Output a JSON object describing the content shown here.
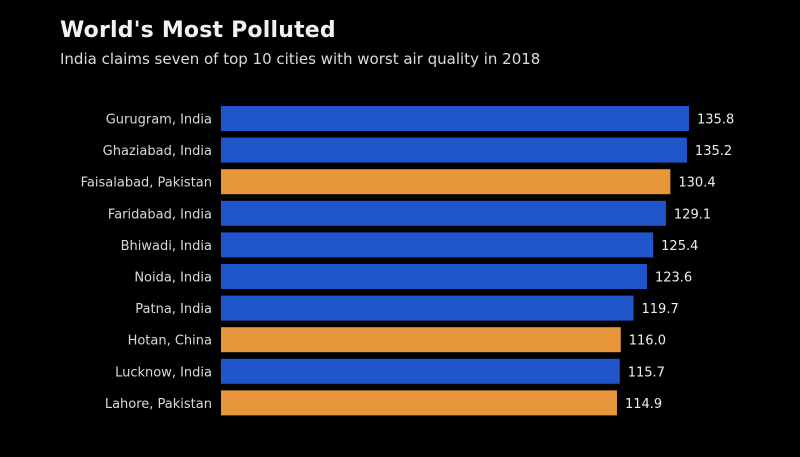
{
  "chart_data": {
    "type": "bar",
    "orientation": "horizontal",
    "title": "World's Most Polluted",
    "subtitle": "India claims seven of top 10 cities with worst air quality in 2018",
    "xlabel": "",
    "ylabel": "",
    "xlim": [
      0,
      135.8
    ],
    "grid": false,
    "legend": "none",
    "categories": [
      "Gurugram, India",
      "Ghaziabad, India",
      "Faisalabad, Pakistan",
      "Faridabad, India",
      "Bhiwadi, India",
      "Noida, India",
      "Patna, India",
      "Hotan, China",
      "Lucknow, India",
      "Lahore, Pakistan"
    ],
    "values": [
      135.8,
      135.2,
      130.4,
      129.1,
      125.4,
      123.6,
      119.7,
      116.0,
      115.7,
      114.9
    ],
    "value_labels": [
      "135.8",
      "135.2",
      "130.4",
      "129.1",
      "125.4",
      "123.6",
      "119.7",
      "116.0",
      "115.7",
      "114.9"
    ],
    "country": [
      "India",
      "India",
      "Pakistan",
      "India",
      "India",
      "India",
      "India",
      "China",
      "India",
      "Pakistan"
    ],
    "colors": {
      "india": "#2155cc",
      "other": "#e8963a"
    }
  }
}
